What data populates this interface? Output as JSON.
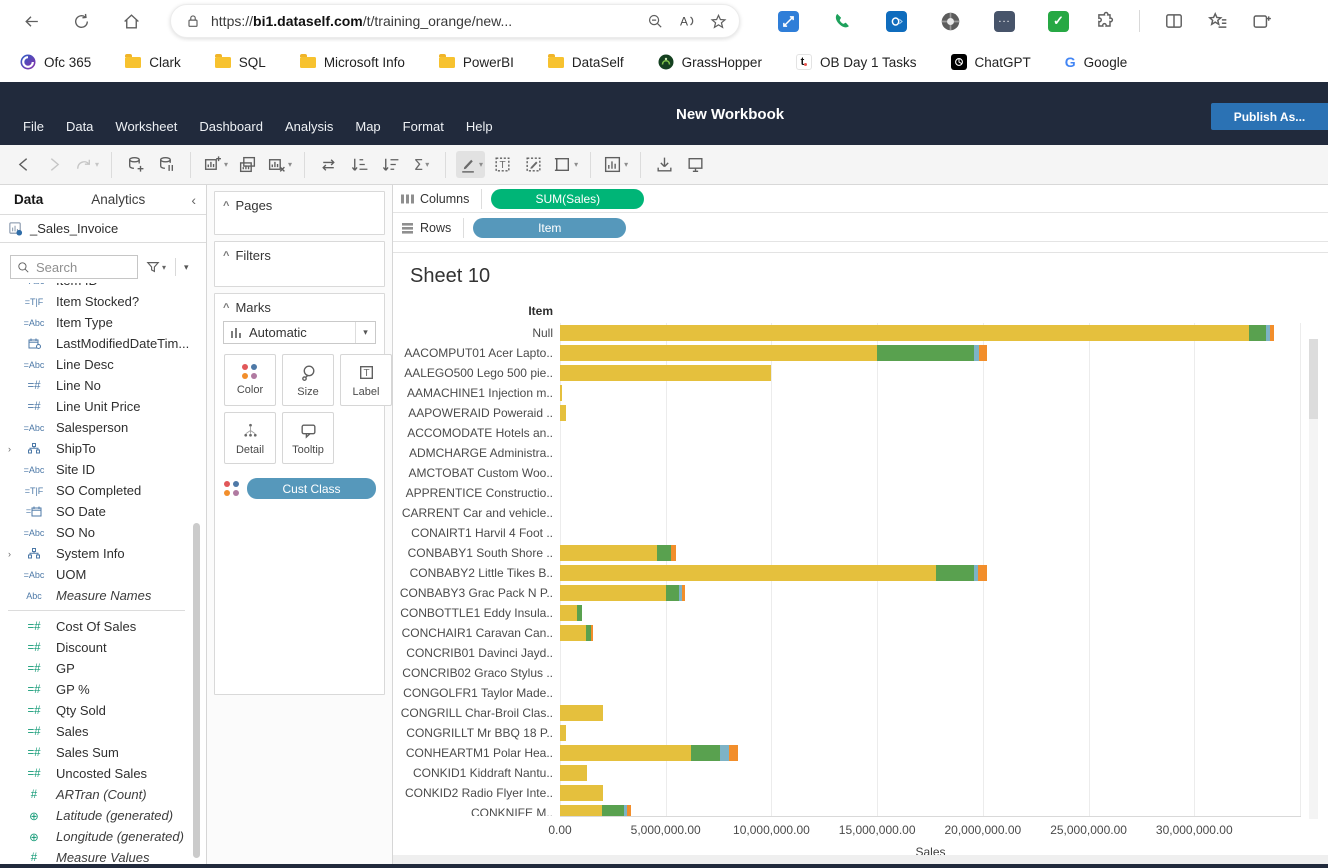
{
  "browser": {
    "nav_icons": [
      "back-arrow",
      "refresh",
      "home"
    ],
    "url": {
      "scheme": "https://",
      "host": "bi1.dataself.com",
      "path": "/t/training_orange/new..."
    },
    "url_icons": [
      "lock",
      "zoom-out",
      "read-aloud",
      "favorite-star"
    ],
    "extension_icons": [
      "screen-share",
      "phone",
      "outlook",
      "shutter",
      "more-extensions",
      "tasks-check"
    ],
    "control_icons": [
      "extensions-puzzle",
      "split-screen",
      "favorites-list",
      "tab-plus"
    ],
    "bookmarks": [
      {
        "label": "Ofc 365",
        "icon": "office365"
      },
      {
        "label": "Clark",
        "icon": "folder"
      },
      {
        "label": "SQL",
        "icon": "folder"
      },
      {
        "label": "Microsoft Info",
        "icon": "folder"
      },
      {
        "label": "PowerBI",
        "icon": "folder"
      },
      {
        "label": "DataSelf",
        "icon": "folder"
      },
      {
        "label": "GrassHopper",
        "icon": "grasshopper"
      },
      {
        "label": "OB Day 1 Tasks",
        "icon": "ticktick"
      },
      {
        "label": "ChatGPT",
        "icon": "chatgpt"
      },
      {
        "label": "Google",
        "icon": "google"
      }
    ]
  },
  "app": {
    "title": "New Workbook",
    "menus": [
      "File",
      "Data",
      "Worksheet",
      "Dashboard",
      "Analysis",
      "Map",
      "Format",
      "Help"
    ],
    "publish_label": "Publish As..."
  },
  "toolbar": {
    "icons": [
      {
        "name": "back-arrow"
      },
      {
        "name": "forward-arrow",
        "disabled": true
      },
      {
        "name": "redo",
        "caret": true,
        "disabled": true
      },
      {
        "sep": true
      },
      {
        "name": "new-data-source"
      },
      {
        "name": "pause-auto-updates"
      },
      {
        "sep": true
      },
      {
        "name": "new-worksheet",
        "caret": true
      },
      {
        "name": "duplicate-sheet"
      },
      {
        "name": "clear-sheet",
        "caret": true
      },
      {
        "sep": true
      },
      {
        "name": "swap-rows-columns"
      },
      {
        "name": "sort-ascending"
      },
      {
        "name": "sort-descending"
      },
      {
        "name": "totals",
        "caret": true
      },
      {
        "sep": true
      },
      {
        "name": "highlight",
        "caret": true,
        "active": true
      },
      {
        "name": "show-mark-labels"
      },
      {
        "name": "format"
      },
      {
        "name": "borders",
        "caret": true
      },
      {
        "sep": true
      },
      {
        "name": "show-me",
        "caret": true
      },
      {
        "sep": true
      },
      {
        "name": "download"
      },
      {
        "name": "presentation-mode"
      }
    ]
  },
  "data_panel": {
    "tabs": [
      {
        "label": "Data"
      },
      {
        "label": "Analytics"
      }
    ],
    "source": "_Sales_Invoice",
    "search": {
      "placeholder": "Search"
    },
    "fields": [
      {
        "icon": "abc-calc",
        "label": "Item ID",
        "role": "dimension",
        "partial": true
      },
      {
        "icon": "tf-calc",
        "label": "Item Stocked?",
        "role": "dimension"
      },
      {
        "icon": "abc-calc",
        "label": "Item Type",
        "role": "dimension"
      },
      {
        "icon": "datetime",
        "label": "LastModifiedDateTim...",
        "role": "dimension"
      },
      {
        "icon": "abc-calc",
        "label": "Line Desc",
        "role": "dimension"
      },
      {
        "icon": "num-calc",
        "label": "Line No",
        "role": "dimension"
      },
      {
        "icon": "num-calc",
        "label": "Line Unit Price",
        "role": "dimension"
      },
      {
        "icon": "abc-calc",
        "label": "Salesperson",
        "role": "dimension"
      },
      {
        "icon": "hierarchy",
        "label": "ShipTo",
        "role": "dimension",
        "expandable": true
      },
      {
        "icon": "abc-calc",
        "label": "Site ID",
        "role": "dimension"
      },
      {
        "icon": "tf-calc",
        "label": "SO Completed",
        "role": "dimension"
      },
      {
        "icon": "date-calc",
        "label": "SO Date",
        "role": "dimension"
      },
      {
        "icon": "abc-calc",
        "label": "SO No",
        "role": "dimension"
      },
      {
        "icon": "hierarchy",
        "label": "System Info",
        "role": "dimension",
        "expandable": true
      },
      {
        "icon": "abc-calc",
        "label": "UOM",
        "role": "dimension"
      },
      {
        "icon": "abc",
        "label": "Measure Names",
        "role": "dimension",
        "italic": true
      },
      {
        "divider": true
      },
      {
        "icon": "num-calc",
        "label": "Cost Of Sales",
        "role": "measure"
      },
      {
        "icon": "num-calc",
        "label": "Discount",
        "role": "measure"
      },
      {
        "icon": "num-calc",
        "label": "GP",
        "role": "measure"
      },
      {
        "icon": "num-calc",
        "label": "GP %",
        "role": "measure"
      },
      {
        "icon": "num-calc",
        "label": "Qty Sold",
        "role": "measure"
      },
      {
        "icon": "num-calc",
        "label": "Sales",
        "role": "measure"
      },
      {
        "icon": "num-calc",
        "label": "Sales Sum",
        "role": "measure"
      },
      {
        "icon": "num-calc",
        "label": "Uncosted Sales",
        "role": "measure"
      },
      {
        "icon": "num",
        "label": "ARTran (Count)",
        "role": "measure",
        "italic": true
      },
      {
        "icon": "globe",
        "label": "Latitude (generated)",
        "role": "measure",
        "italic": true
      },
      {
        "icon": "globe",
        "label": "Longitude (generated)",
        "role": "measure",
        "italic": true
      },
      {
        "icon": "num",
        "label": "Measure Values",
        "role": "measure",
        "italic": true
      }
    ]
  },
  "cards": {
    "pages_label": "Pages",
    "filters_label": "Filters",
    "marks_label": "Marks",
    "mark_type": "Automatic",
    "mark_buttons": [
      {
        "label": "Color",
        "icon": "color-dots"
      },
      {
        "label": "Size",
        "icon": "size-circle"
      },
      {
        "label": "Label",
        "icon": "label-t"
      },
      {
        "label": "Detail",
        "icon": "detail-dots"
      },
      {
        "label": "Tooltip",
        "icon": "tooltip-bubble"
      }
    ],
    "color_pill": {
      "label": "Cust Class",
      "icon": "color-dots"
    },
    "color_dot_colors": [
      "#e15759",
      "#4e79a7",
      "#f28e2b",
      "#b07aa1"
    ]
  },
  "shelves": {
    "columns": {
      "label": "Columns",
      "pill": "SUM(Sales)",
      "pill_color": "#00b577"
    },
    "rows": {
      "label": "Rows",
      "pill": "Item",
      "pill_color": "#5698bb"
    }
  },
  "chart_data": {
    "type": "bar",
    "orientation": "horizontal",
    "stacked": true,
    "title": "Sheet 10",
    "row_field": "Item",
    "xlabel": "Sales",
    "xlim": [
      0,
      35000000
    ],
    "grid_interval": 5000000,
    "x_tick_values": [
      0,
      5000000,
      10000000,
      15000000,
      20000000,
      25000000,
      30000000
    ],
    "x_tick_labels": [
      "0.00",
      "5,000,000.00",
      "10,000,000.00",
      "15,000,000.00",
      "20,000,000.00",
      "25,000,000.00",
      "30,000,000.00"
    ],
    "color_field": "Cust Class",
    "segment_colors": [
      "#e5c03d",
      "#59a14f",
      "#7db3c6",
      "#f28e2b"
    ],
    "rows": [
      {
        "label": "Null",
        "values": [
          32600000,
          800000,
          200000,
          150000
        ]
      },
      {
        "label": "AACOMPUT01  Acer Lapto..",
        "values": [
          15000000,
          4600000,
          200000,
          400000
        ]
      },
      {
        "label": "AALEGO500  Lego 500 pie..",
        "values": [
          10000000,
          0,
          0,
          0
        ]
      },
      {
        "label": "AAMACHINE1  Injection m..",
        "values": [
          100000,
          0,
          0,
          0
        ]
      },
      {
        "label": "AAPOWERAID  Poweraid ..",
        "values": [
          300000,
          0,
          0,
          0
        ]
      },
      {
        "label": "ACCOMODATE  Hotels an..",
        "values": [
          0,
          0,
          0,
          0
        ]
      },
      {
        "label": "ADMCHARGE  Administra..",
        "values": [
          0,
          0,
          0,
          0
        ]
      },
      {
        "label": "AMCTOBAT  Custom Woo..",
        "values": [
          0,
          0,
          0,
          0
        ]
      },
      {
        "label": "APPRENTICE  Constructio..",
        "values": [
          0,
          0,
          0,
          0
        ]
      },
      {
        "label": "CARRENT  Car and vehicle..",
        "values": [
          0,
          0,
          0,
          0
        ]
      },
      {
        "label": "CONAIRT1  Harvil 4 Foot ..",
        "values": [
          0,
          0,
          0,
          0
        ]
      },
      {
        "label": "CONBABY1  South Shore ..",
        "values": [
          4600000,
          650000,
          0,
          250000
        ]
      },
      {
        "label": "CONBABY2  Little Tikes B..",
        "values": [
          17800000,
          1800000,
          150000,
          450000
        ]
      },
      {
        "label": "CONBABY3  Grac Pack N P..",
        "values": [
          5000000,
          650000,
          100000,
          150000
        ]
      },
      {
        "label": "CONBOTTLE1  Eddy Insula..",
        "values": [
          800000,
          250000,
          0,
          0
        ]
      },
      {
        "label": "CONCHAIR1  Caravan Can..",
        "values": [
          1250000,
          200000,
          0,
          100000
        ]
      },
      {
        "label": "CONCRIB01  Davinci Jayd..",
        "values": [
          0,
          0,
          0,
          0
        ]
      },
      {
        "label": "CONCRIB02  Graco Stylus ..",
        "values": [
          0,
          0,
          0,
          0
        ]
      },
      {
        "label": "CONGOLFR1  Taylor Made..",
        "values": [
          0,
          0,
          0,
          0
        ]
      },
      {
        "label": "CONGRILL  Char-Broil Clas..",
        "values": [
          2050000,
          0,
          0,
          0
        ]
      },
      {
        "label": "CONGRILLT  Mr BBQ 18 P..",
        "values": [
          300000,
          0,
          0,
          0
        ]
      },
      {
        "label": "CONHEARTM1  Polar Hea..",
        "values": [
          6200000,
          1350000,
          450000,
          400000
        ]
      },
      {
        "label": "CONKID1  Kiddraft Nantu..",
        "values": [
          1300000,
          0,
          0,
          0
        ]
      },
      {
        "label": "CONKID2  Radio Flyer Inte..",
        "values": [
          2050000,
          0,
          0,
          0
        ]
      },
      {
        "label": "CONKNIFE  M..",
        "values": [
          2000000,
          1050000,
          100000,
          200000
        ],
        "partial": true
      }
    ]
  }
}
